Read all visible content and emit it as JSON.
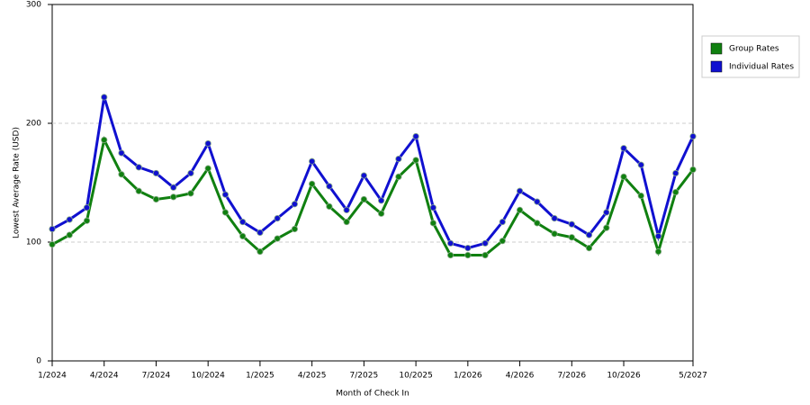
{
  "chart_data": {
    "type": "line",
    "x_label": "Month of Check In",
    "y_label": "Lowest Average Rate (USD)",
    "categories": [
      "1/2024",
      null,
      null,
      "4/2024",
      null,
      null,
      "7/2024",
      null,
      null,
      "10/2024",
      null,
      null,
      "1/2025",
      null,
      null,
      "4/2025",
      null,
      null,
      "7/2025",
      null,
      null,
      "10/2025",
      null,
      null,
      "1/2026",
      null,
      null,
      "4/2026",
      null,
      null,
      "7/2026",
      null,
      null,
      "10/2026",
      null,
      null,
      null,
      "5/2027"
    ],
    "series": [
      {
        "name": "Group Rates",
        "color": "#108010",
        "values": [
          98,
          106,
          118,
          186,
          157,
          143,
          136,
          138,
          141,
          162,
          125,
          105,
          92,
          103,
          111,
          149,
          130,
          117,
          136,
          124,
          155,
          169,
          116,
          89,
          89,
          89,
          101,
          127,
          116,
          107,
          104,
          95,
          112,
          155,
          139,
          92,
          142,
          161
        ]
      },
      {
        "name": "Individual Rates",
        "color": "#1010d0",
        "values": [
          111,
          119,
          129,
          222,
          175,
          163,
          158,
          146,
          158,
          183,
          140,
          117,
          108,
          120,
          132,
          168,
          147,
          127,
          156,
          135,
          170,
          189,
          129,
          99,
          95,
          99,
          117,
          143,
          134,
          120,
          115,
          106,
          125,
          179,
          165,
          105,
          158,
          189
        ]
      }
    ],
    "ylim": [
      0,
      300
    ],
    "yticks": [
      0,
      100,
      200,
      300
    ],
    "grid": true,
    "legend": "right"
  }
}
